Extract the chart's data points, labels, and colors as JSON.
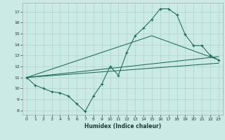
{
  "xlabel": "Humidex (Indice chaleur)",
  "bg_color": "#cceae5",
  "grid_color": "#aad4cc",
  "line_color": "#1a6b5a",
  "xlim": [
    -0.5,
    23.5
  ],
  "ylim": [
    7.6,
    17.8
  ],
  "yticks": [
    8,
    9,
    10,
    11,
    12,
    13,
    14,
    15,
    16,
    17
  ],
  "xticks": [
    0,
    1,
    2,
    3,
    4,
    5,
    6,
    7,
    8,
    9,
    10,
    11,
    12,
    13,
    14,
    15,
    16,
    17,
    18,
    19,
    20,
    21,
    22,
    23
  ],
  "curve_x": [
    0,
    1,
    2,
    3,
    4,
    5,
    6,
    7,
    8,
    9,
    10,
    11,
    12,
    13,
    14,
    15,
    16,
    17,
    18,
    19,
    20,
    21,
    22,
    23
  ],
  "curve_y": [
    11.0,
    10.3,
    10.0,
    9.7,
    9.6,
    9.3,
    8.6,
    7.9,
    9.3,
    10.4,
    12.0,
    11.2,
    13.3,
    14.8,
    15.5,
    16.3,
    17.25,
    17.25,
    16.7,
    14.9,
    13.9,
    13.9,
    13.0,
    12.6
  ],
  "line1_x": [
    0,
    23
  ],
  "line1_y": [
    11.0,
    12.3
  ],
  "line2_x": [
    0,
    23
  ],
  "line2_y": [
    11.0,
    12.9
  ],
  "line3_x": [
    0,
    15,
    23
  ],
  "line3_y": [
    11.0,
    14.8,
    12.6
  ]
}
